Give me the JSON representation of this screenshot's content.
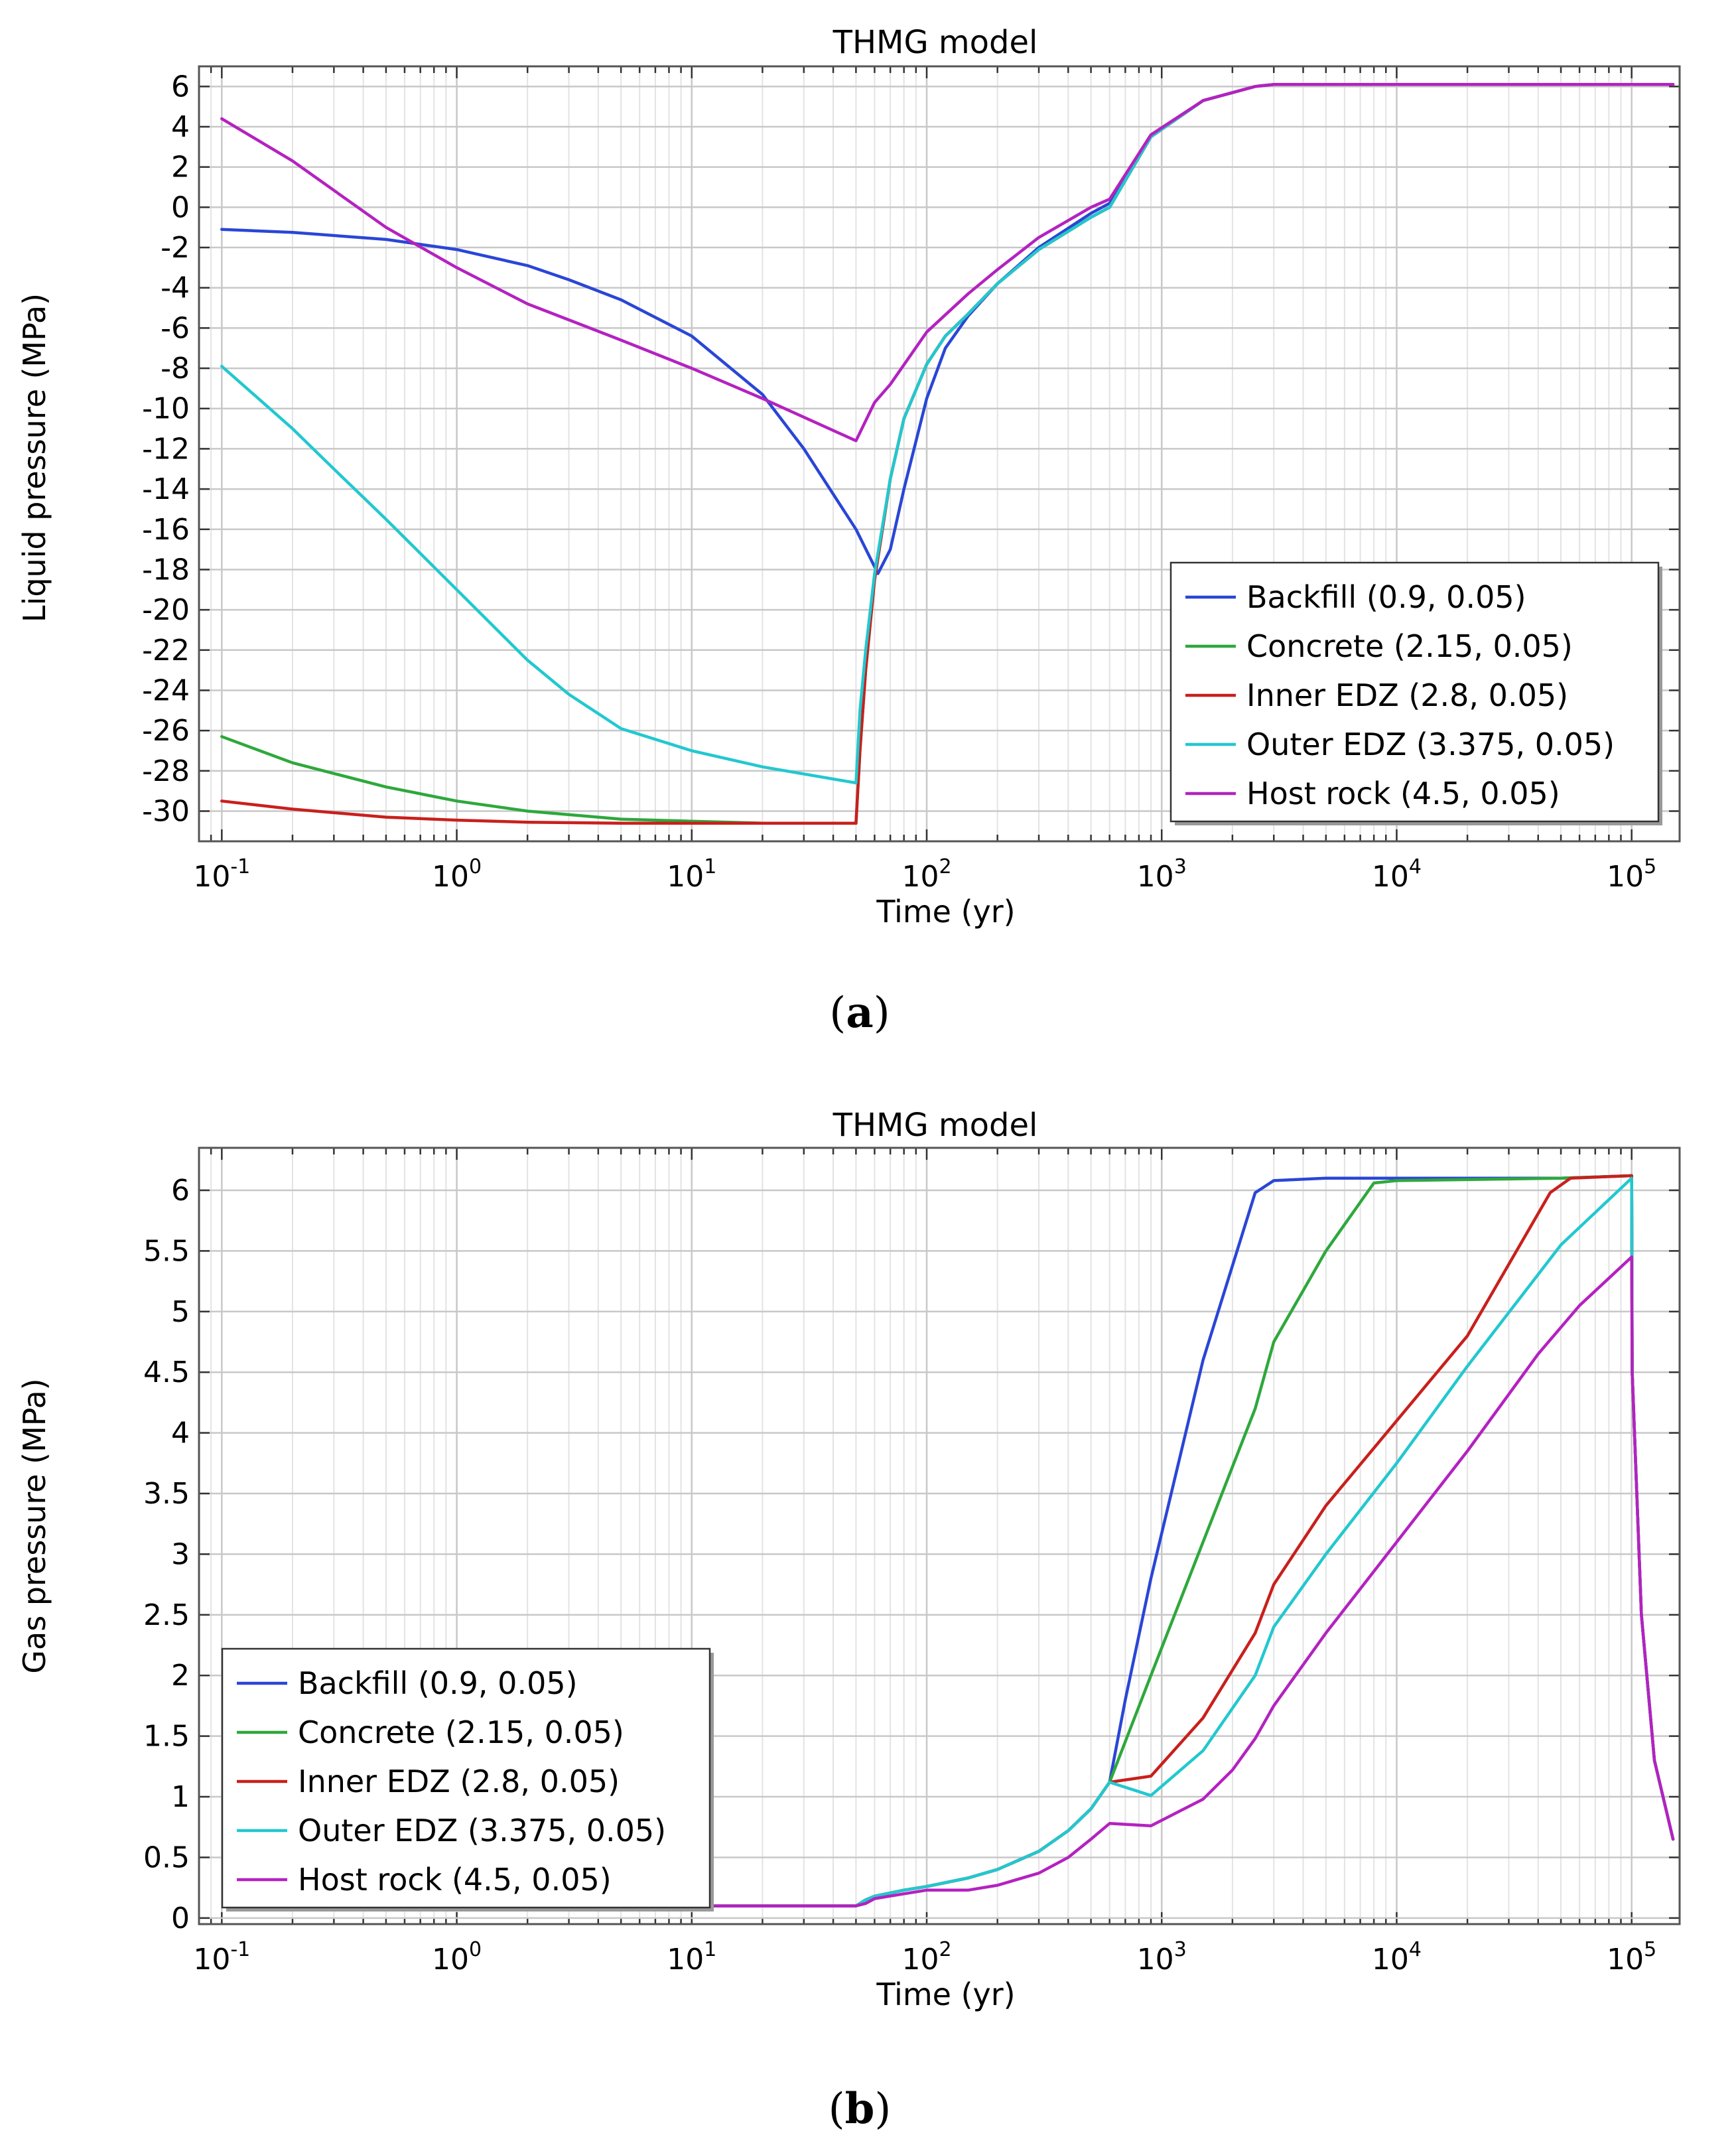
{
  "panels": [
    {
      "id": "a",
      "label": "a",
      "chart_data": {
        "type": "line",
        "title": "THMG model",
        "xlabel": "Time (yr)",
        "ylabel": "Liquid pressure (MPa)",
        "xscale": "log",
        "xlim": [
          0.08,
          160000
        ],
        "ylim": [
          -31.5,
          7
        ],
        "xticks": [
          "10^-1",
          "10^0",
          "10^1",
          "10^2",
          "10^3",
          "10^4",
          "10^5"
        ],
        "yticks": [
          6,
          4,
          2,
          0,
          -2,
          -4,
          -6,
          -8,
          -10,
          -12,
          -14,
          -16,
          -18,
          -20,
          -22,
          -24,
          -26,
          -28,
          -30
        ],
        "grid": true,
        "legend_position": "center-right",
        "series": [
          {
            "name": "Backfill (0.9, 0.05)",
            "color": "#2a46d6",
            "x": [
              0.1,
              0.2,
              0.5,
              1,
              2,
              3,
              5,
              10,
              20,
              30,
              50,
              62,
              70,
              80,
              100,
              120,
              150,
              200,
              300,
              500,
              600,
              900,
              1500,
              2500,
              3000,
              10000,
              100000,
              150000
            ],
            "y": [
              -1.1,
              -1.25,
              -1.6,
              -2.1,
              -2.9,
              -3.6,
              -4.6,
              -6.4,
              -9.3,
              -12,
              -16,
              -18.2,
              -17,
              -14,
              -9.5,
              -7,
              -5.4,
              -3.8,
              -2,
              -0.3,
              0.2,
              3.5,
              5.3,
              6,
              6.1,
              6.1,
              6.1,
              6.1
            ]
          },
          {
            "name": "Concrete (2.15, 0.05)",
            "color": "#2ea83c",
            "x": [
              0.1,
              0.2,
              0.5,
              1,
              2,
              5,
              10,
              20,
              50,
              52,
              55,
              60,
              70,
              80,
              100,
              120,
              150,
              200,
              300,
              500,
              600,
              900,
              1500,
              2500,
              3000,
              10000,
              100000,
              150000
            ],
            "y": [
              -26.3,
              -27.6,
              -28.8,
              -29.5,
              -30,
              -30.4,
              -30.5,
              -30.6,
              -30.6,
              -27,
              -23,
              -18.5,
              -13.5,
              -10.5,
              -7.8,
              -6.4,
              -5.3,
              -3.8,
              -2.1,
              -0.5,
              0,
              3.5,
              5.3,
              6,
              6.1,
              6.1,
              6.1,
              6.1
            ]
          },
          {
            "name": "Inner EDZ (2.8, 0.05)",
            "color": "#c8201c",
            "x": [
              0.1,
              0.2,
              0.5,
              1,
              2,
              5,
              10,
              20,
              50,
              52,
              55,
              60,
              70,
              80,
              100,
              120,
              150,
              200,
              300,
              500,
              600,
              900,
              1500,
              2500,
              3000,
              10000,
              100000,
              150000
            ],
            "y": [
              -29.5,
              -29.9,
              -30.3,
              -30.45,
              -30.55,
              -30.6,
              -30.6,
              -30.6,
              -30.6,
              -27,
              -23,
              -18.5,
              -13.5,
              -10.5,
              -7.8,
              -6.4,
              -5.3,
              -3.8,
              -2.1,
              -0.5,
              0,
              3.5,
              5.3,
              6,
              6.1,
              6.1,
              6.1,
              6.1
            ]
          },
          {
            "name": "Outer EDZ (3.375, 0.05)",
            "color": "#22c8cf",
            "x": [
              0.1,
              0.2,
              0.3,
              0.5,
              1,
              2,
              3,
              5,
              10,
              20,
              50,
              52,
              55,
              60,
              70,
              80,
              100,
              120,
              150,
              200,
              300,
              500,
              600,
              900,
              1500,
              2500,
              3000,
              10000,
              100000,
              150000
            ],
            "y": [
              -7.9,
              -11,
              -13,
              -15.5,
              -19,
              -22.5,
              -24.2,
              -25.9,
              -27,
              -27.8,
              -28.6,
              -25,
              -22,
              -18.2,
              -13.5,
              -10.5,
              -7.8,
              -6.4,
              -5.3,
              -3.8,
              -2.1,
              -0.5,
              0,
              3.5,
              5.3,
              6,
              6.1,
              6.1,
              6.1,
              6.1
            ]
          },
          {
            "name": "Host rock (4.5, 0.05)",
            "color": "#b422c0",
            "x": [
              0.1,
              0.2,
              0.5,
              1,
              2,
              5,
              10,
              20,
              50,
              60,
              70,
              100,
              150,
              200,
              300,
              500,
              600,
              900,
              1500,
              2500,
              3000,
              10000,
              100000,
              150000
            ],
            "y": [
              4.4,
              2.3,
              -1,
              -3,
              -4.8,
              -6.6,
              -8,
              -9.5,
              -11.6,
              -9.7,
              -8.8,
              -6.2,
              -4.3,
              -3.1,
              -1.5,
              0,
              0.4,
              3.6,
              5.3,
              6,
              6.1,
              6.1,
              6.1,
              6.1
            ]
          }
        ]
      }
    },
    {
      "id": "b",
      "label": "b",
      "chart_data": {
        "type": "line",
        "title": "THMG model",
        "xlabel": "Time (yr)",
        "ylabel": "Gas pressure (MPa)",
        "xscale": "log",
        "xlim": [
          0.08,
          160000
        ],
        "ylim": [
          -0.05,
          6.35
        ],
        "xticks": [
          "10^-1",
          "10^0",
          "10^1",
          "10^2",
          "10^3",
          "10^4",
          "10^5"
        ],
        "yticks": [
          6,
          5.5,
          5,
          4.5,
          4,
          3.5,
          3,
          2.5,
          2,
          1.5,
          1,
          0.5,
          0
        ],
        "grid": true,
        "legend_position": "bottom-left",
        "series": [
          {
            "name": "Backfill (0.9, 0.05)",
            "color": "#2a46d6",
            "x": [
              10,
              50,
              55,
              60,
              80,
              100,
              150,
              200,
              300,
              400,
              500,
              600,
              700,
              900,
              1500,
              2500,
              3000,
              5000,
              10000,
              50000,
              100000,
              100500,
              110000,
              125000,
              150000
            ],
            "y": [
              0.1,
              0.1,
              0.15,
              0.18,
              0.23,
              0.26,
              0.33,
              0.4,
              0.55,
              0.72,
              0.9,
              1.12,
              1.8,
              2.8,
              4.6,
              5.98,
              6.08,
              6.1,
              6.1,
              6.1,
              6.12,
              4.5,
              2.5,
              1.3,
              0.65
            ]
          },
          {
            "name": "Concrete (2.15, 0.05)",
            "color": "#2ea83c",
            "x": [
              10,
              50,
              55,
              60,
              80,
              100,
              150,
              200,
              300,
              400,
              500,
              600,
              900,
              1500,
              2500,
              3000,
              5000,
              8000,
              10000,
              50000,
              100000,
              100500,
              110000,
              125000,
              150000
            ],
            "y": [
              0.1,
              0.1,
              0.15,
              0.18,
              0.23,
              0.26,
              0.33,
              0.4,
              0.55,
              0.72,
              0.9,
              1.12,
              2,
              3.1,
              4.2,
              4.75,
              5.5,
              6.06,
              6.08,
              6.1,
              6.12,
              4.5,
              2.5,
              1.3,
              0.65
            ]
          },
          {
            "name": "Inner EDZ (2.8, 0.05)",
            "color": "#c8201c",
            "x": [
              10,
              50,
              55,
              60,
              80,
              100,
              150,
              200,
              300,
              400,
              500,
              600,
              900,
              1500,
              2500,
              3000,
              5000,
              10000,
              20000,
              45000,
              55000,
              100000,
              100500,
              110000,
              125000,
              150000
            ],
            "y": [
              0.1,
              0.1,
              0.15,
              0.18,
              0.23,
              0.26,
              0.33,
              0.4,
              0.55,
              0.72,
              0.9,
              1.12,
              1.17,
              1.65,
              2.35,
              2.75,
              3.4,
              4.1,
              4.8,
              5.98,
              6.1,
              6.12,
              4.5,
              2.5,
              1.3,
              0.65
            ]
          },
          {
            "name": "Outer EDZ (3.375, 0.05)",
            "color": "#22c8cf",
            "x": [
              10,
              50,
              55,
              60,
              80,
              100,
              150,
              200,
              300,
              400,
              500,
              600,
              900,
              1500,
              2500,
              3000,
              5000,
              10000,
              20000,
              50000,
              100000,
              100500,
              110000,
              125000,
              150000
            ],
            "y": [
              0.1,
              0.1,
              0.15,
              0.18,
              0.23,
              0.26,
              0.33,
              0.4,
              0.55,
              0.72,
              0.9,
              1.12,
              1.01,
              1.38,
              2.0,
              2.4,
              3.0,
              3.75,
              4.55,
              5.55,
              6.1,
              4.5,
              2.5,
              1.3,
              0.65
            ]
          },
          {
            "name": "Host rock (4.5, 0.05)",
            "color": "#b422c0",
            "x": [
              10,
              50,
              55,
              60,
              80,
              100,
              150,
              200,
              300,
              400,
              500,
              600,
              900,
              1500,
              2000,
              2500,
              3000,
              5000,
              10000,
              20000,
              40000,
              60000,
              100000,
              100500,
              110000,
              125000,
              150000
            ],
            "y": [
              0.1,
              0.1,
              0.12,
              0.16,
              0.2,
              0.23,
              0.23,
              0.27,
              0.37,
              0.5,
              0.65,
              0.78,
              0.76,
              0.98,
              1.22,
              1.48,
              1.75,
              2.35,
              3.1,
              3.85,
              4.65,
              5.05,
              5.45,
              4.5,
              2.5,
              1.3,
              0.65
            ]
          }
        ]
      }
    }
  ]
}
